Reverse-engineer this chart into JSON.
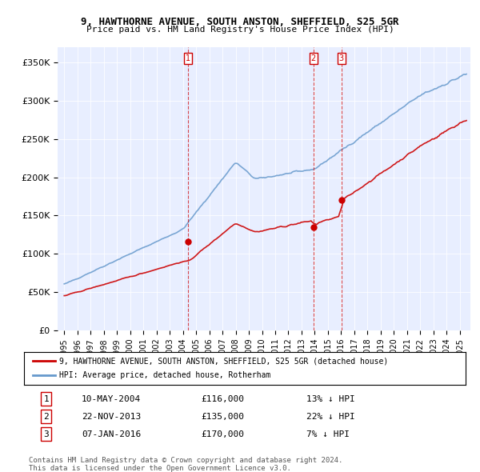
{
  "title": "9, HAWTHORNE AVENUE, SOUTH ANSTON, SHEFFIELD, S25 5GR",
  "subtitle": "Price paid vs. HM Land Registry's House Price Index (HPI)",
  "ylim": [
    0,
    370000
  ],
  "yticks": [
    0,
    50000,
    100000,
    150000,
    200000,
    250000,
    300000,
    350000
  ],
  "ytick_labels": [
    "£0",
    "£50K",
    "£100K",
    "£150K",
    "£200K",
    "£250K",
    "£300K",
    "£350K"
  ],
  "legend_line1": "9, HAWTHORNE AVENUE, SOUTH ANSTON, SHEFFIELD, S25 5GR (detached house)",
  "legend_line2": "HPI: Average price, detached house, Rotherham",
  "sale_dates": [
    "10-MAY-2004",
    "22-NOV-2013",
    "07-JAN-2016"
  ],
  "sale_prices": [
    116000,
    135000,
    170000
  ],
  "sale_hpi_diff": [
    "13% ↓ HPI",
    "22% ↓ HPI",
    "7% ↓ HPI"
  ],
  "vline_color": "#cc0000",
  "vline_x": [
    2004.36,
    2013.89,
    2016.02
  ],
  "red_line_color": "#cc0000",
  "blue_line_color": "#6699cc",
  "footnote1": "Contains HM Land Registry data © Crown copyright and database right 2024.",
  "footnote2": "This data is licensed under the Open Government Licence v3.0.",
  "background_color": "#f0f4ff",
  "plot_bg_color": "#e8eeff"
}
